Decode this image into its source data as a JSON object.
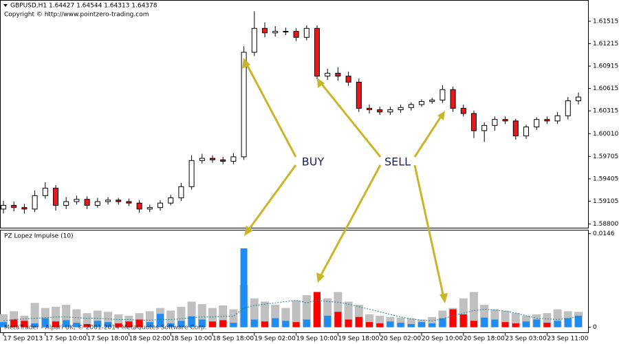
{
  "chart_data": {
    "type": "candlestick",
    "header": "GBPUSD,H1  1.64427 1.64544 1.64313 1.64378",
    "copyright": "Copyright © http://www.pointzero-trading.com",
    "watermark": "MetaTrader - Alpari UK, © 2001-2014 MetaQuotes Software Corp.",
    "annotations": [
      "BUY",
      "SELL"
    ],
    "up_color": "#ffffff",
    "down_color": "#e8191d",
    "categories": [
      "17 Sep 2013",
      null,
      null,
      null,
      "17 Sep 10:00",
      null,
      null,
      null,
      "17 Sep 18:00",
      null,
      null,
      null,
      "18 Sep 02:00",
      null,
      null,
      null,
      "18 Sep 10:00",
      null,
      null,
      null,
      "18 Sep 18:00",
      null,
      null,
      null,
      "19 Sep 02:00",
      null,
      null,
      null,
      "19 Sep 10:00",
      null,
      null,
      null,
      "19 Sep 18:00",
      null,
      null,
      null,
      "20 Sep 02:00",
      null,
      null,
      null,
      "20 Sep 10:00",
      null,
      null,
      null,
      "20 Sep 18:00",
      null,
      null,
      null,
      "23 Sep 03:00",
      null,
      null,
      null,
      "23 Sep 11:00",
      null,
      null,
      null
    ],
    "open": [
      1.59,
      1.5905,
      1.5902,
      1.59,
      1.5918,
      1.5928,
      1.5905,
      1.591,
      1.5913,
      1.5905,
      1.591,
      1.5912,
      1.591,
      1.5908,
      1.59,
      1.5902,
      1.5908,
      1.5915,
      1.593,
      1.5965,
      1.5968,
      1.5966,
      1.5964,
      1.597,
      1.611,
      1.6142,
      1.6136,
      1.6138,
      1.6138,
      1.613,
      1.6142,
      1.6078,
      1.6082,
      1.6078,
      1.607,
      1.6035,
      1.6033,
      1.603,
      1.6033,
      1.6036,
      1.604,
      1.6044,
      1.6046,
      1.606,
      1.6035,
      1.6028,
      1.6005,
      1.6012,
      1.602,
      1.6018,
      1.5998,
      1.601,
      1.602,
      1.6018,
      1.6025,
      1.6045
    ],
    "high": [
      1.5911,
      1.591,
      1.5907,
      1.5925,
      1.5936,
      1.5932,
      1.5916,
      1.5918,
      1.5917,
      1.5915,
      1.5916,
      1.5915,
      1.5914,
      1.5912,
      1.5906,
      1.5912,
      1.5919,
      1.5935,
      1.5972,
      1.5974,
      1.5972,
      1.597,
      1.5975,
      1.6118,
      1.6165,
      1.615,
      1.6145,
      1.6143,
      1.6142,
      1.6146,
      1.6146,
      1.6088,
      1.609,
      1.6084,
      1.6075,
      1.604,
      1.6037,
      1.6037,
      1.604,
      1.6043,
      1.6047,
      1.6049,
      1.6066,
      1.6064,
      1.604,
      1.6032,
      1.6016,
      1.6024,
      1.6024,
      1.6021,
      1.6013,
      1.6023,
      1.6024,
      1.603,
      1.605,
      1.6056
    ],
    "low": [
      1.5894,
      1.5897,
      1.5894,
      1.5896,
      1.5914,
      1.5898,
      1.59,
      1.5906,
      1.59,
      1.5902,
      1.5906,
      1.5906,
      1.5904,
      1.5895,
      1.5896,
      1.5898,
      1.5905,
      1.5911,
      1.5926,
      1.5961,
      1.5962,
      1.596,
      1.596,
      1.5966,
      1.6105,
      1.613,
      1.6131,
      1.6133,
      1.6125,
      1.6126,
      1.6074,
      1.6073,
      1.6072,
      1.6065,
      1.603,
      1.6028,
      1.6026,
      1.6026,
      1.6029,
      1.6032,
      1.6037,
      1.6041,
      1.6042,
      1.603,
      1.6024,
      1.5995,
      1.599,
      1.6005,
      1.6014,
      1.5993,
      1.5994,
      1.6006,
      1.6014,
      1.6014,
      1.602,
      1.604
    ],
    "close": [
      1.5905,
      1.5902,
      1.59,
      1.5918,
      1.5928,
      1.5905,
      1.591,
      1.5913,
      1.5905,
      1.591,
      1.5912,
      1.591,
      1.5908,
      1.59,
      1.5902,
      1.5908,
      1.5915,
      1.593,
      1.5965,
      1.5968,
      1.5966,
      1.5964,
      1.597,
      1.611,
      1.6142,
      1.6136,
      1.6138,
      1.6138,
      1.613,
      1.6142,
      1.6078,
      1.6082,
      1.6078,
      1.607,
      1.6035,
      1.6033,
      1.603,
      1.6033,
      1.6036,
      1.604,
      1.6044,
      1.6046,
      1.606,
      1.6035,
      1.6028,
      1.6005,
      1.6012,
      1.602,
      1.6018,
      1.5998,
      1.601,
      1.602,
      1.6018,
      1.6025,
      1.6045,
      1.605
    ],
    "ylim": [
      1.5875,
      1.618
    ],
    "yticks": [
      1.61515,
      1.61215,
      1.60915,
      1.60615,
      1.60315,
      {
        "value": 1.6001,
        "label": "1.60010"
      },
      1.59705,
      1.59405,
      1.59105,
      {
        "value": 1.588,
        "label": "1.58800"
      }
    ],
    "indicator": {
      "title": "PZ Lopez Impulse (10)",
      "ylim": [
        -0.0009,
        0.0151
      ],
      "yticks": [
        0.0146,
        0
      ],
      "background_color": "#c0c0c0",
      "background_bars": [
        0.002,
        0.0025,
        0.0018,
        0.0038,
        0.003,
        0.0032,
        0.0035,
        0.0028,
        0.0022,
        0.0026,
        0.0024,
        0.002,
        0.0018,
        0.0022,
        0.0025,
        0.003,
        0.0026,
        0.0032,
        0.004,
        0.0036,
        0.003,
        0.0034,
        0.0028,
        0.0066,
        0.0045,
        0.004,
        0.0035,
        0.003,
        0.0042,
        0.005,
        0.0038,
        0.0045,
        0.0055,
        0.004,
        0.0035,
        0.002,
        0.0018,
        0.0016,
        0.0015,
        0.0014,
        0.0012,
        0.0016,
        0.0026,
        0.003,
        0.0045,
        0.0055,
        0.0035,
        0.0028,
        0.0026,
        0.0022,
        0.0018,
        0.002,
        0.0022,
        0.0028,
        0.0025,
        0.0024
      ],
      "bars": [
        0.0008,
        0.0012,
        0.001,
        0.0006,
        0.0014,
        0.0009,
        0.0011,
        0.0007,
        0.0005,
        0.001,
        0.0008,
        0.0006,
        0.0009,
        0.0012,
        0.0008,
        0.0021,
        0.0006,
        0.001,
        0.0017,
        0.0012,
        0.0009,
        0.0011,
        0.0007,
        0.0123,
        0.0012,
        0.0009,
        0.0014,
        0.001,
        0.0008,
        0.0012,
        0.0055,
        0.0018,
        0.0024,
        0.0012,
        0.0016,
        0.0008,
        0.0006,
        0.0009,
        0.0007,
        0.0005,
        0.0008,
        0.0006,
        0.0014,
        0.0028,
        0.002,
        0.001,
        0.0015,
        0.0012,
        0.0008,
        0.0006,
        0.0009,
        0.0012,
        0.0007,
        0.001,
        0.0014,
        0.0018
      ],
      "bar_colors": [
        "#1e8cf0",
        "#ff0000",
        "#ff0000",
        "#1e8cf0",
        "#1e8cf0",
        "#ff0000",
        "#1e8cf0",
        "#1e8cf0",
        "#ff0000",
        "#1e8cf0",
        "#1e8cf0",
        "#ff0000",
        "#ff0000",
        "#ff0000",
        "#1e8cf0",
        "#1e8cf0",
        "#1e8cf0",
        "#1e8cf0",
        "#1e8cf0",
        "#1e8cf0",
        "#ff0000",
        "#ff0000",
        "#1e8cf0",
        "#1e8cf0",
        "#1e8cf0",
        "#ff0000",
        "#1e8cf0",
        "#1e8cf0",
        "#ff0000",
        "#1e8cf0",
        "#ff0000",
        "#1e8cf0",
        "#ff0000",
        "#ff0000",
        "#ff0000",
        "#ff0000",
        "#ff0000",
        "#1e8cf0",
        "#1e8cf0",
        "#1e8cf0",
        "#1e8cf0",
        "#1e8cf0",
        "#1e8cf0",
        "#ff0000",
        "#ff0000",
        "#ff0000",
        "#1e8cf0",
        "#1e8cf0",
        "#ff0000",
        "#ff0000",
        "#1e8cf0",
        "#1e8cf0",
        "#ff0000",
        "#1e8cf0",
        "#1e8cf0",
        "#1e8cf0"
      ],
      "line_color": "#20808a",
      "line": [
        0.001,
        0.0012,
        0.0013,
        0.0014,
        0.0015,
        0.0016,
        0.0016,
        0.0015,
        0.0014,
        0.0014,
        0.0013,
        0.0012,
        0.0012,
        0.0011,
        0.0011,
        0.0012,
        0.0012,
        0.0013,
        0.0015,
        0.0016,
        0.0016,
        0.0017,
        0.0017,
        0.003,
        0.0034,
        0.0036,
        0.0038,
        0.004,
        0.0042,
        0.0038,
        0.0042,
        0.004,
        0.0039,
        0.0036,
        0.0032,
        0.0028,
        0.0024,
        0.002,
        0.0016,
        0.0013,
        0.0011,
        0.001,
        0.0013,
        0.0018,
        0.0022,
        0.0026,
        0.0028,
        0.0027,
        0.0025,
        0.0022,
        0.0018,
        0.0014,
        0.0013,
        0.0012,
        0.0014,
        0.0016
      ]
    }
  }
}
